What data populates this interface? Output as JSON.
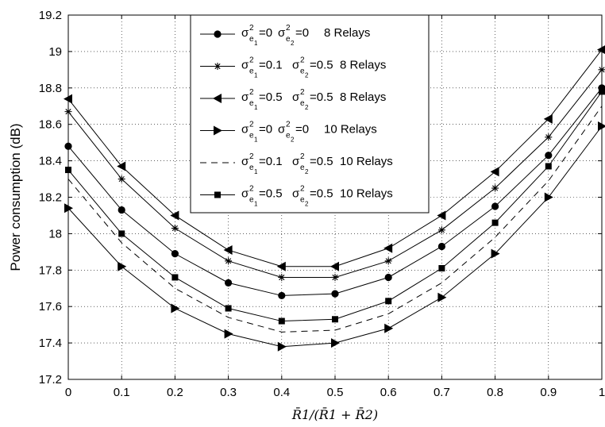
{
  "chart_data": {
    "type": "line",
    "xlabel": "R̄1/(R̄1 + R̄2)",
    "ylabel": "Power consumption (dB)",
    "xlim": [
      0,
      1
    ],
    "ylim": [
      17.2,
      19.2
    ],
    "xticks": [
      "0",
      "0.1",
      "0.2",
      "0.3",
      "0.4",
      "0.5",
      "0.6",
      "0.7",
      "0.8",
      "0.9",
      "1"
    ],
    "yticks": [
      "17.2",
      "17.4",
      "17.6",
      "17.8",
      "18",
      "18.2",
      "18.4",
      "18.6",
      "18.8",
      "19",
      "19.2"
    ],
    "grid": true,
    "legend_position": "top-center",
    "x": [
      0,
      0.1,
      0.2,
      0.3,
      0.4,
      0.5,
      0.6,
      0.7,
      0.8,
      0.9,
      1
    ],
    "series": [
      {
        "id": "s1",
        "marker": "circle",
        "dash": "solid",
        "legend": {
          "a": "0",
          "b": "0",
          "relays": "8 Relays"
        },
        "values": [
          18.48,
          18.13,
          17.89,
          17.73,
          17.66,
          17.67,
          17.76,
          17.93,
          18.15,
          18.43,
          18.8
        ]
      },
      {
        "id": "s2",
        "marker": "star",
        "dash": "solid",
        "legend": {
          "a": "0.1",
          "b": "0.5",
          "relays": "8 Relays"
        },
        "values": [
          18.67,
          18.3,
          18.03,
          17.85,
          17.76,
          17.76,
          17.85,
          18.02,
          18.25,
          18.53,
          18.9
        ]
      },
      {
        "id": "s3",
        "marker": "triangle-left",
        "dash": "solid",
        "legend": {
          "a": "0.5",
          "b": "0.5",
          "relays": "8 Relays"
        },
        "values": [
          18.74,
          18.37,
          18.1,
          17.91,
          17.82,
          17.82,
          17.92,
          18.1,
          18.34,
          18.63,
          19.01
        ]
      },
      {
        "id": "s4",
        "marker": "triangle-right",
        "dash": "solid",
        "legend": {
          "a": "0",
          "b": "0",
          "relays": "10 Relays"
        },
        "values": [
          18.14,
          17.82,
          17.59,
          17.45,
          17.38,
          17.4,
          17.48,
          17.65,
          17.89,
          18.2,
          18.59
        ]
      },
      {
        "id": "s5",
        "marker": "none",
        "dash": "dashed",
        "legend": {
          "a": "0.1",
          "b": "0.5",
          "relays": "10 Relays"
        },
        "values": [
          18.3,
          17.95,
          17.7,
          17.54,
          17.46,
          17.47,
          17.56,
          17.73,
          17.98,
          18.29,
          18.7
        ]
      },
      {
        "id": "s6",
        "marker": "square",
        "dash": "solid",
        "legend": {
          "a": "0.5",
          "b": "0.5",
          "relays": "10 Relays"
        },
        "values": [
          18.35,
          18.0,
          17.76,
          17.59,
          17.52,
          17.53,
          17.63,
          17.81,
          18.06,
          18.37,
          18.78
        ]
      }
    ]
  },
  "legend_symbols": {
    "sigma": "σ",
    "sup": "2",
    "sub1": "e",
    "sub1b": "1",
    "sub2b": "2"
  }
}
